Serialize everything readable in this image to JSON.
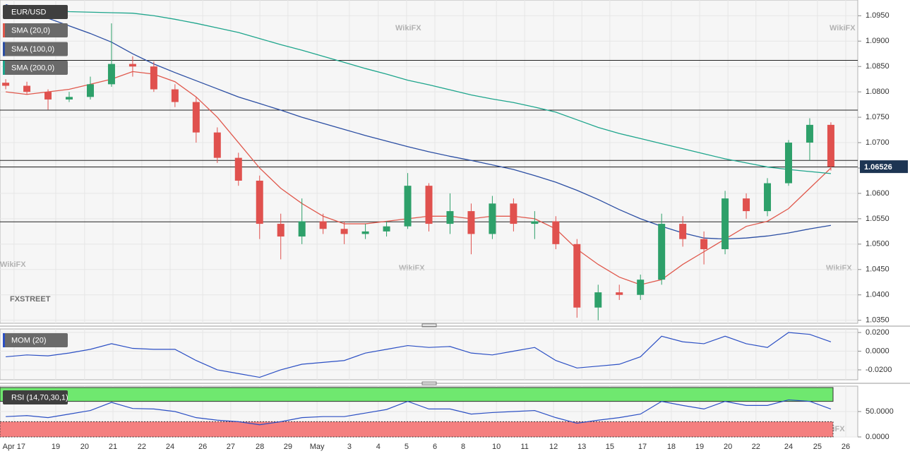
{
  "watermark": "WikiFX",
  "logo": "FXSTREET",
  "chart_data": [
    {
      "type": "candlestick",
      "title": "EUR/USD",
      "up_color": "#2ea06a",
      "down_color": "#e0514e",
      "level_color": "#222222",
      "x": [
        0.2,
        0.94,
        1.68,
        2.42,
        3.16,
        3.9,
        4.64,
        5.38,
        6.12,
        6.86,
        7.6,
        8.34,
        9.08,
        9.82,
        10.56,
        11.3,
        12.04,
        12.78,
        13.52,
        14.26,
        15,
        15.74,
        16.48,
        17.22,
        17.96,
        18.7,
        19.44,
        20.18,
        20.92,
        21.66,
        22.4,
        23.14,
        23.88,
        24.62,
        25.36,
        26.1,
        26.84,
        27.58,
        28.32,
        29.06
      ],
      "open": [
        1.0818,
        1.0812,
        1.08,
        1.0785,
        1.079,
        1.0815,
        1.0855,
        1.085,
        1.0805,
        1.078,
        1.072,
        1.067,
        1.0625,
        1.054,
        1.0515,
        1.0545,
        1.053,
        1.052,
        1.0525,
        1.0535,
        1.0615,
        1.054,
        1.0565,
        1.052,
        1.058,
        1.054,
        1.0545,
        1.05,
        1.0375,
        1.0405,
        1.04,
        1.043,
        1.054,
        1.051,
        1.049,
        1.059,
        1.0565,
        1.062,
        1.07,
        1.0735
      ],
      "high": [
        1.0825,
        1.082,
        1.0805,
        1.08,
        1.083,
        1.0935,
        1.087,
        1.086,
        1.0815,
        1.079,
        1.073,
        1.068,
        1.0635,
        1.056,
        1.059,
        1.056,
        1.0545,
        1.054,
        1.0545,
        1.064,
        1.062,
        1.06,
        1.058,
        1.0595,
        1.059,
        1.0565,
        1.0555,
        1.051,
        1.042,
        1.042,
        1.044,
        1.056,
        1.0555,
        1.0525,
        1.0605,
        1.06,
        1.063,
        1.0705,
        1.0748,
        1.074
      ],
      "low": [
        1.0805,
        1.0795,
        1.0765,
        1.078,
        1.0785,
        1.081,
        1.083,
        1.08,
        1.077,
        1.07,
        1.066,
        1.0615,
        1.051,
        1.047,
        1.05,
        1.052,
        1.05,
        1.051,
        1.0515,
        1.053,
        1.0525,
        1.052,
        1.048,
        1.051,
        1.0525,
        1.051,
        1.049,
        1.0355,
        1.035,
        1.039,
        1.039,
        1.042,
        1.0495,
        1.046,
        1.048,
        1.055,
        1.0555,
        1.0615,
        1.0665,
        1.0645
      ],
      "close": [
        1.0812,
        1.08,
        1.0785,
        1.079,
        1.0815,
        1.0855,
        1.085,
        1.0805,
        1.078,
        1.072,
        1.067,
        1.0625,
        1.054,
        1.0515,
        1.0545,
        1.053,
        1.052,
        1.0525,
        1.0535,
        1.0615,
        1.054,
        1.0565,
        1.052,
        1.058,
        1.054,
        1.0545,
        1.05,
        1.0375,
        1.0405,
        1.04,
        1.043,
        1.054,
        1.051,
        1.049,
        1.059,
        1.0565,
        1.062,
        1.07,
        1.0735,
        1.06526
      ],
      "series": [
        {
          "name": "SMA (20,0)",
          "color": "#e0584c",
          "values": [
            1.08,
            1.0795,
            1.08,
            1.0805,
            1.0815,
            1.0825,
            1.084,
            1.0835,
            1.082,
            1.079,
            1.075,
            1.07,
            1.065,
            1.061,
            1.058,
            1.0555,
            1.054,
            1.054,
            1.0545,
            1.055,
            1.0555,
            1.0555,
            1.055,
            1.0555,
            1.0555,
            1.055,
            1.053,
            1.049,
            1.046,
            1.0435,
            1.042,
            1.043,
            1.046,
            1.0485,
            1.051,
            1.0535,
            1.0545,
            1.057,
            1.061,
            1.065
          ]
        },
        {
          "name": "SMA (100,0)",
          "color": "#2b4ea3",
          "values": [
            1.0972,
            1.096,
            1.0945,
            1.093,
            1.0915,
            1.0898,
            1.0875,
            1.0855,
            1.0838,
            1.0822,
            1.0806,
            1.079,
            1.0777,
            1.0764,
            1.075,
            1.0738,
            1.0726,
            1.0714,
            1.0703,
            1.0692,
            1.0682,
            1.0673,
            1.0665,
            1.0656,
            1.0647,
            1.0635,
            1.0622,
            1.0606,
            1.0588,
            1.0568,
            1.055,
            1.0535,
            1.0522,
            1.0512,
            1.051,
            1.0512,
            1.0516,
            1.0522,
            1.053,
            1.0537
          ]
        },
        {
          "name": "SMA (200,0)",
          "color": "#1ea58c",
          "values": [
            1.0965,
            1.0962,
            1.096,
            1.0958,
            1.0957,
            1.0956,
            1.0955,
            1.095,
            1.0943,
            1.0935,
            1.0926,
            1.0917,
            1.0905,
            1.0893,
            1.0882,
            1.087,
            1.0858,
            1.0846,
            1.0835,
            1.0823,
            1.0814,
            1.0804,
            1.0794,
            1.0786,
            1.0779,
            1.077,
            1.076,
            1.0745,
            1.073,
            1.0718,
            1.0708,
            1.0698,
            1.0688,
            1.0678,
            1.0668,
            1.066,
            1.0652,
            1.0647,
            1.0643,
            1.0639
          ]
        }
      ],
      "levels": [
        1.0862,
        1.0764,
        1.0665,
        1.0652,
        1.0544
      ],
      "xlim": [
        0,
        30
      ],
      "ylim": [
        1.0344,
        1.0981
      ],
      "yticks": [
        {
          "value": 1.095,
          "label": "1.0950"
        },
        {
          "value": 1.09,
          "label": "1.0900"
        },
        {
          "value": 1.085,
          "label": "1.0850"
        },
        {
          "value": 1.08,
          "label": "1.0800"
        },
        {
          "value": 1.075,
          "label": "1.0750"
        },
        {
          "value": 1.07,
          "label": "1.0700"
        },
        {
          "value": 1.065,
          "label": "1.0650"
        },
        {
          "value": 1.06,
          "label": "1.0600"
        },
        {
          "value": 1.055,
          "label": "1.0550"
        },
        {
          "value": 1.05,
          "label": "1.0500"
        },
        {
          "value": 1.045,
          "label": "1.0450"
        },
        {
          "value": 1.04,
          "label": "1.0400"
        },
        {
          "value": 1.035,
          "label": "1.0350"
        }
      ],
      "grid": true
    },
    {
      "type": "line",
      "title": "MOM (20)",
      "color": "#2b4fc4",
      "x": [
        0.2,
        0.94,
        1.68,
        2.42,
        3.16,
        3.9,
        4.64,
        5.38,
        6.12,
        6.86,
        7.6,
        8.34,
        9.08,
        9.82,
        10.56,
        11.3,
        12.04,
        12.78,
        13.52,
        14.26,
        15,
        15.74,
        16.48,
        17.22,
        17.96,
        18.7,
        19.44,
        20.18,
        20.92,
        21.66,
        22.4,
        23.14,
        23.88,
        24.62,
        25.36,
        26.1,
        26.84,
        27.58,
        28.32,
        29.06
      ],
      "values": [
        -0.006,
        -0.004,
        -0.005,
        -0.002,
        0.002,
        0.008,
        0.003,
        0.002,
        0.002,
        -0.01,
        -0.02,
        -0.024,
        -0.028,
        -0.02,
        -0.014,
        -0.012,
        -0.01,
        -0.002,
        0.002,
        0.006,
        0.004,
        0.005,
        -0.002,
        -0.004,
        0.0,
        0.004,
        -0.01,
        -0.018,
        -0.016,
        -0.014,
        -0.006,
        0.016,
        0.01,
        0.008,
        0.016,
        0.008,
        0.004,
        0.02,
        0.018,
        0.01
      ],
      "xlim": [
        0,
        30
      ],
      "ylim": [
        -0.0306,
        0.0238
      ],
      "yticks": [
        {
          "value": 0.02,
          "label": "0.0200"
        },
        {
          "value": 0,
          "label": "0.0000"
        },
        {
          "value": -0.02,
          "label": "-0.0200"
        }
      ],
      "grid": true
    },
    {
      "type": "line",
      "title": "RSI (14,70,30,1)",
      "color": "#2b4fc4",
      "overbought": 70,
      "oversold": 30,
      "overbought_color": "#6fe86f",
      "oversold_color": "#f47f7f",
      "x": [
        0.2,
        0.94,
        1.68,
        2.42,
        3.16,
        3.9,
        4.64,
        5.38,
        6.12,
        6.86,
        7.6,
        8.34,
        9.08,
        9.82,
        10.56,
        11.3,
        12.04,
        12.78,
        13.52,
        14.26,
        15,
        15.74,
        16.48,
        17.22,
        17.96,
        18.7,
        19.44,
        20.18,
        20.92,
        21.66,
        22.4,
        23.14,
        23.88,
        24.62,
        25.36,
        26.1,
        26.84,
        27.58,
        28.32,
        29.06
      ],
      "values": [
        40,
        42,
        38,
        45,
        52,
        68,
        56,
        55,
        50,
        38,
        33,
        30,
        24,
        30,
        38,
        40,
        40,
        47,
        54,
        70,
        55,
        55,
        45,
        48,
        50,
        52,
        38,
        27,
        33,
        38,
        45,
        70,
        62,
        55,
        70,
        62,
        62,
        73,
        70,
        55
      ],
      "xlim": [
        0,
        30
      ],
      "ylim": [
        0,
        100
      ],
      "yticks": [
        {
          "value": 50,
          "label": "50.0000"
        },
        {
          "value": 0,
          "label": "0.0000"
        }
      ],
      "xticks": [
        {
          "value": 0.49,
          "label": "Apr 17"
        },
        {
          "value": 1.95,
          "label": "19"
        },
        {
          "value": 2.96,
          "label": "20"
        },
        {
          "value": 3.95,
          "label": "21"
        },
        {
          "value": 4.96,
          "label": "22"
        },
        {
          "value": 5.95,
          "label": "24"
        },
        {
          "value": 7.09,
          "label": "26"
        },
        {
          "value": 8.07,
          "label": "27"
        },
        {
          "value": 9.09,
          "label": "28"
        },
        {
          "value": 10.07,
          "label": "29"
        },
        {
          "value": 11.09,
          "label": "May"
        },
        {
          "value": 12.22,
          "label": "3"
        },
        {
          "value": 13.23,
          "label": "4"
        },
        {
          "value": 14.22,
          "label": "5"
        },
        {
          "value": 15.21,
          "label": "6"
        },
        {
          "value": 16.2,
          "label": "8"
        },
        {
          "value": 17.36,
          "label": "10"
        },
        {
          "value": 18.35,
          "label": "11"
        },
        {
          "value": 19.36,
          "label": "12"
        },
        {
          "value": 20.35,
          "label": "13"
        },
        {
          "value": 21.33,
          "label": "15"
        },
        {
          "value": 22.47,
          "label": "17"
        },
        {
          "value": 23.48,
          "label": "18"
        },
        {
          "value": 24.47,
          "label": "19"
        },
        {
          "value": 25.46,
          "label": "20"
        },
        {
          "value": 26.44,
          "label": "22"
        },
        {
          "value": 27.58,
          "label": "24"
        },
        {
          "value": 28.59,
          "label": "25"
        },
        {
          "value": 29.58,
          "label": "26"
        }
      ],
      "grid": true
    }
  ]
}
